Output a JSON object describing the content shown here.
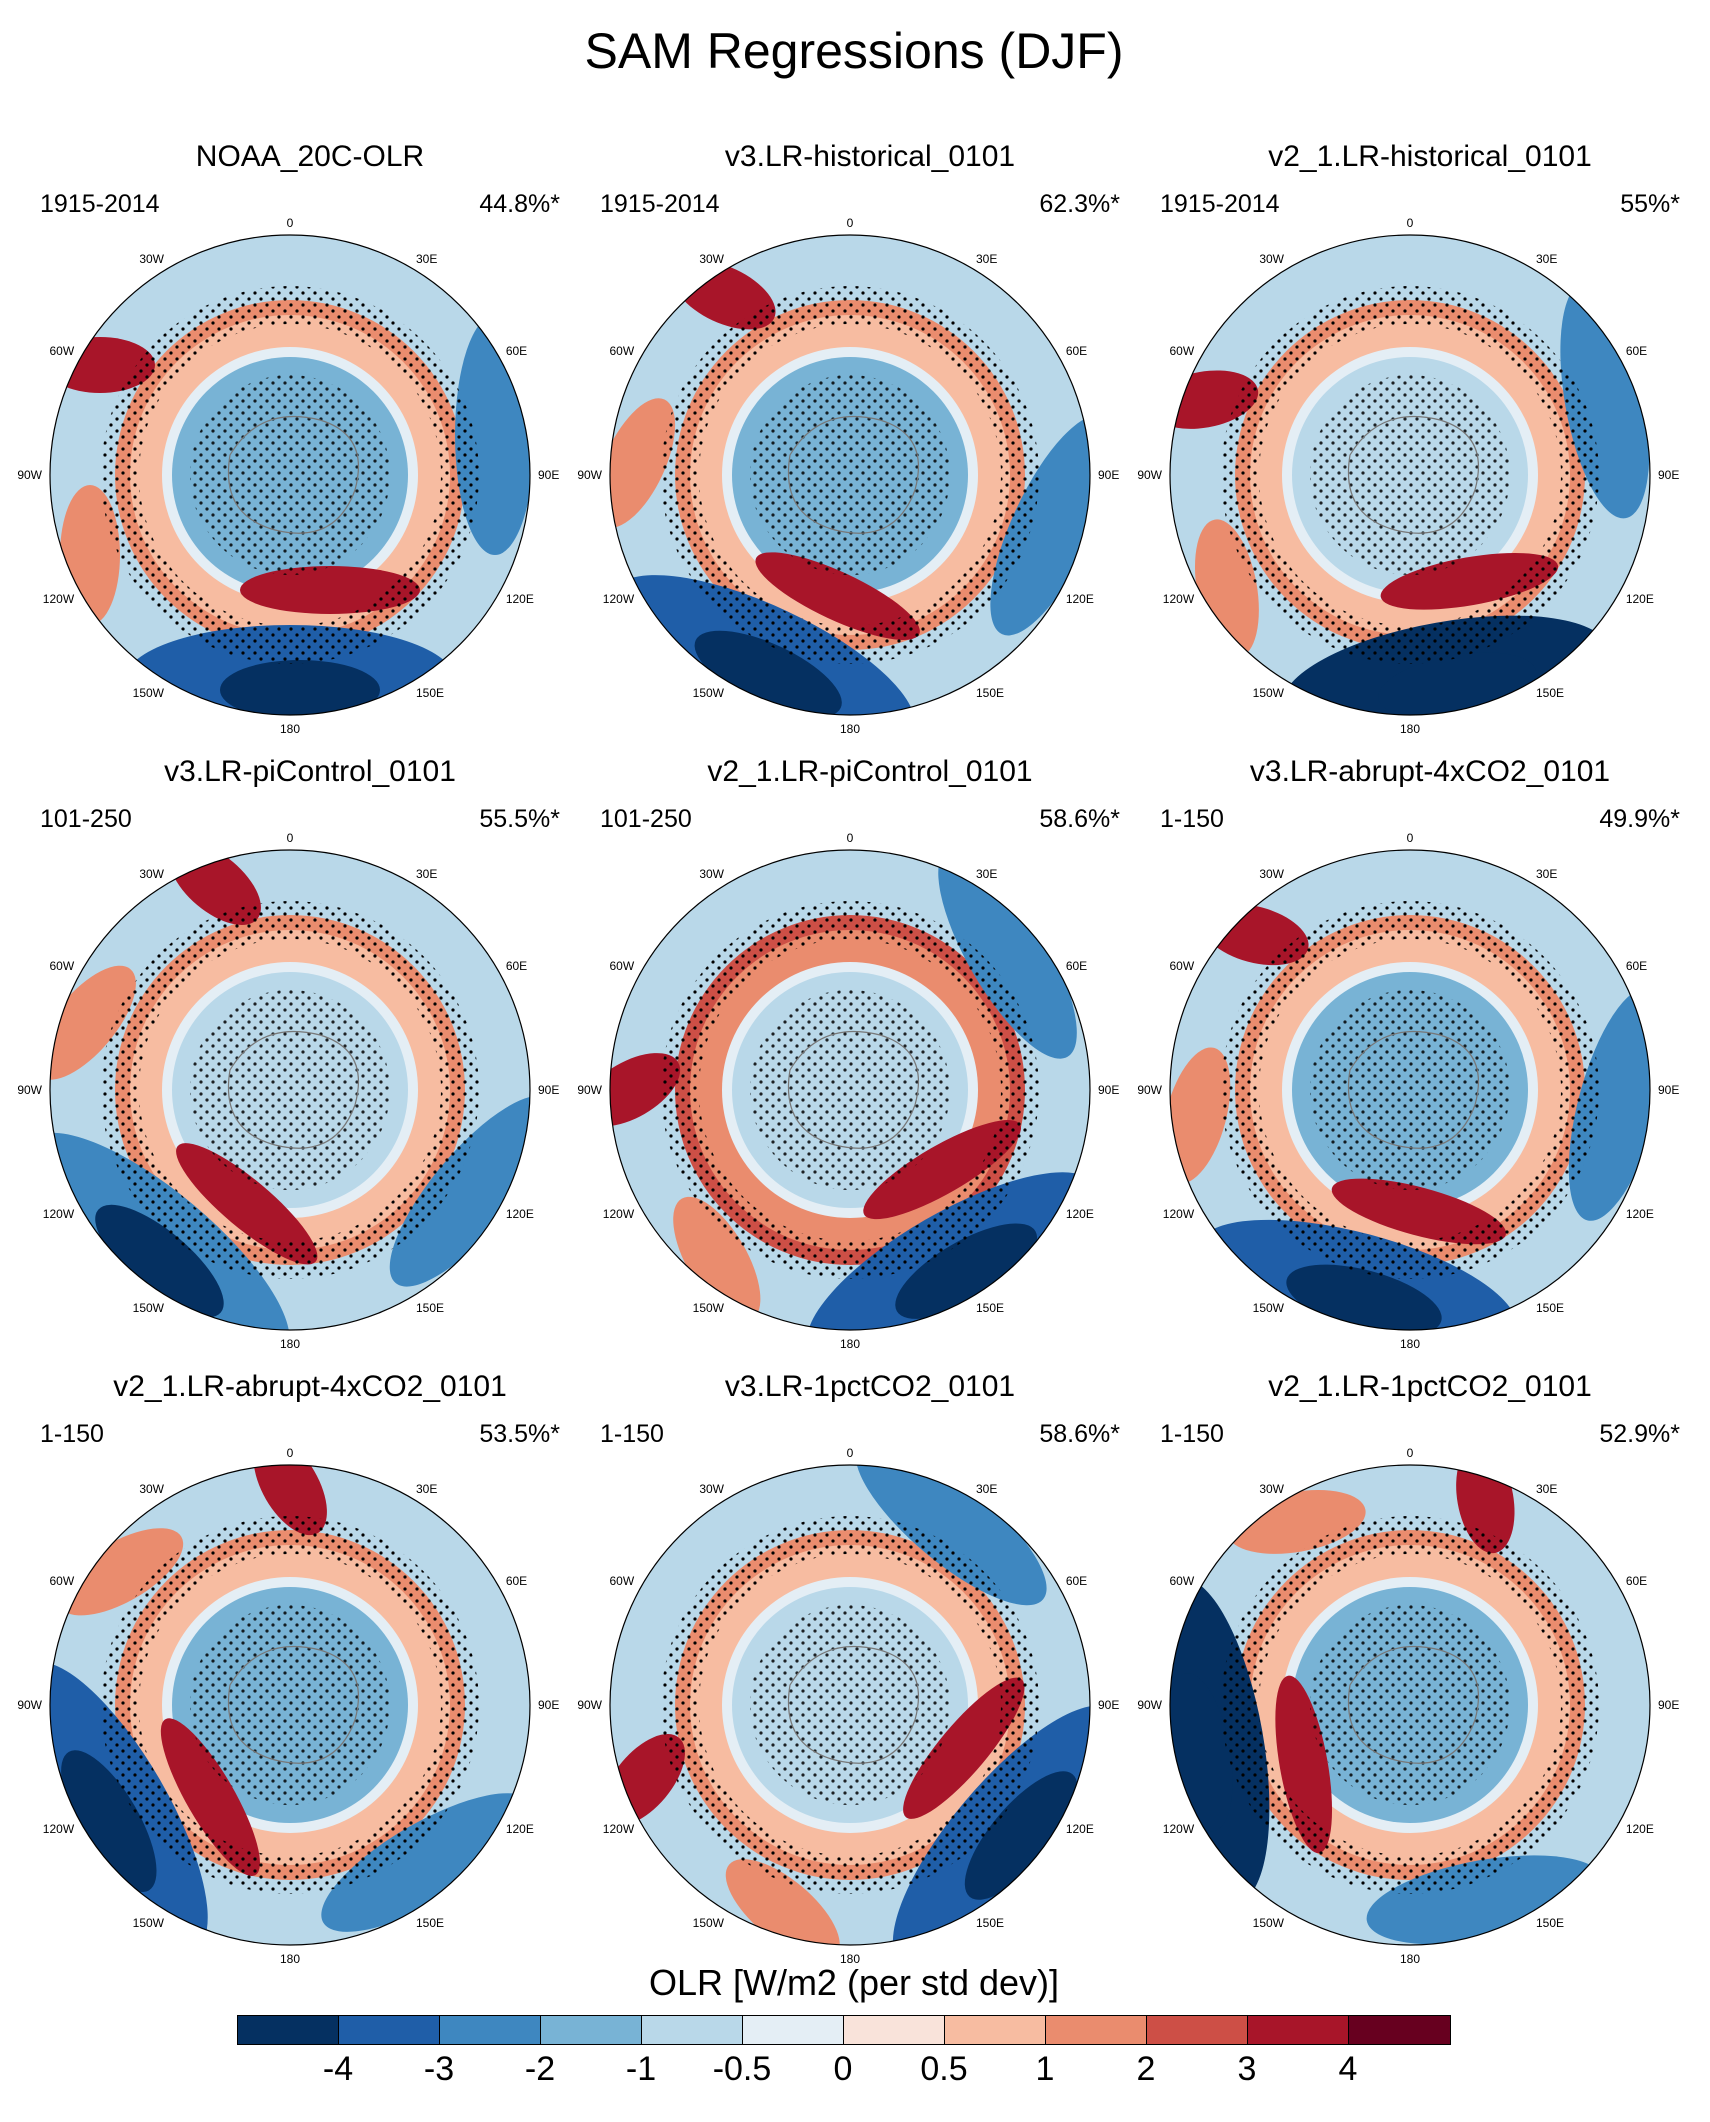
{
  "title": "SAM Regressions (DJF)",
  "panels": [
    {
      "title": "NOAA_20C-OLR",
      "period": "1915-2014",
      "percent": "44.8%*"
    },
    {
      "title": "v3.LR-historical_0101",
      "period": "1915-2014",
      "percent": "62.3%*"
    },
    {
      "title": "v2_1.LR-historical_0101",
      "period": "1915-2014",
      "percent": "55%*"
    },
    {
      "title": "v3.LR-piControl_0101",
      "period": "101-250",
      "percent": "55.5%*"
    },
    {
      "title": "v2_1.LR-piControl_0101",
      "period": "101-250",
      "percent": "58.6%*"
    },
    {
      "title": "v3.LR-abrupt-4xCO2_0101",
      "period": "1-150",
      "percent": "49.9%*"
    },
    {
      "title": "v2_1.LR-abrupt-4xCO2_0101",
      "period": "1-150",
      "percent": "53.5%*"
    },
    {
      "title": "v3.LR-1pctCO2_0101",
      "period": "1-150",
      "percent": "58.6%*"
    },
    {
      "title": "v2_1.LR-1pctCO2_0101",
      "period": "1-150",
      "percent": "52.9%*"
    }
  ],
  "map_labels": {
    "top": "0",
    "bottom": "180",
    "left": "90W",
    "right": "90E",
    "lon30w": "30W",
    "lon30e": "30E",
    "lon60w": "60W",
    "lon60e": "60E",
    "lon120w": "120W",
    "lon120e": "120E",
    "lon150w": "150W",
    "lon150e": "150E"
  },
  "colorbar": {
    "label": "OLR [W/m2 (per std dev)]",
    "ticks": [
      "-4",
      "-3",
      "-2",
      "-1",
      "-0.5",
      "0",
      "0.5",
      "1",
      "2",
      "3",
      "4"
    ],
    "colors": [
      "#053061",
      "#1f5ea8",
      "#3e87c0",
      "#78b3d5",
      "#b9d8e9",
      "#e4eef5",
      "#f9e3da",
      "#f7bca1",
      "#ea8c6e",
      "#cd4f46",
      "#a81529",
      "#67001f"
    ]
  }
}
